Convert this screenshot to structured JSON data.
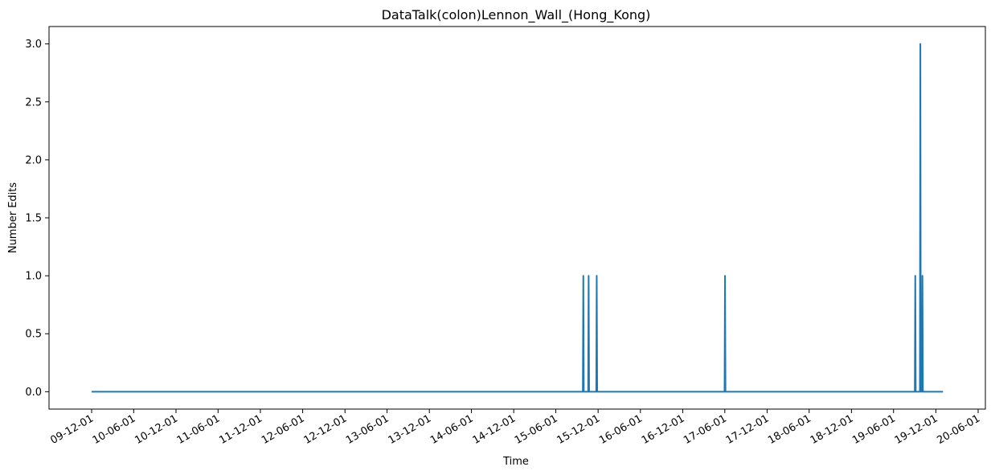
{
  "chart_data": {
    "type": "line",
    "title": "DataTalk(colon)Lennon_Wall_(Hong_Kong)",
    "xlabel": "Time",
    "ylabel": "Number Edits",
    "x_type": "date",
    "xlim": [
      "2009-12-01",
      "2020-06-01"
    ],
    "ylim": [
      -0.15,
      3.15
    ],
    "yticks": [
      0.0,
      0.5,
      1.0,
      1.5,
      2.0,
      2.5,
      3.0
    ],
    "ytick_labels": [
      "0.0",
      "0.5",
      "1.0",
      "1.5",
      "2.0",
      "2.5",
      "3.0"
    ],
    "xticks": [
      "2009-12-01",
      "2010-06-01",
      "2010-12-01",
      "2011-06-01",
      "2011-12-01",
      "2012-06-01",
      "2012-12-01",
      "2013-06-01",
      "2013-12-01",
      "2014-06-01",
      "2014-12-01",
      "2015-06-01",
      "2015-12-01",
      "2016-06-01",
      "2016-12-01",
      "2017-06-01",
      "2017-12-01",
      "2018-06-01",
      "2018-12-01",
      "2019-06-01",
      "2019-12-01",
      "2020-06-01"
    ],
    "xtick_labels": [
      "09-12-01",
      "10-06-01",
      "10-12-01",
      "11-06-01",
      "11-12-01",
      "12-06-01",
      "12-12-01",
      "13-06-01",
      "13-12-01",
      "14-06-01",
      "14-12-01",
      "15-06-01",
      "15-12-01",
      "16-06-01",
      "16-12-01",
      "17-06-01",
      "17-12-01",
      "18-06-01",
      "18-12-01",
      "19-06-01",
      "19-12-01",
      "20-06-01"
    ],
    "grid": false,
    "series": [
      {
        "color": "#1f77b4",
        "x": [
          "2009-12-01",
          "2015-09-26",
          "2015-09-28",
          "2015-09-30",
          "2015-10-19",
          "2015-10-21",
          "2015-10-23",
          "2015-11-23",
          "2015-11-25",
          "2015-11-27",
          "2017-05-31",
          "2017-06-02",
          "2017-06-04",
          "2019-09-01",
          "2019-09-03",
          "2019-09-05",
          "2019-09-23",
          "2019-09-25",
          "2019-09-27",
          "2019-10-02",
          "2019-10-04",
          "2019-10-06",
          "2020-01-01"
        ],
        "y": [
          0,
          0,
          1,
          0,
          0,
          1,
          0,
          0,
          1,
          0,
          0,
          1,
          0,
          0,
          1,
          0,
          0,
          3,
          0,
          0,
          1,
          0,
          0
        ]
      }
    ]
  }
}
